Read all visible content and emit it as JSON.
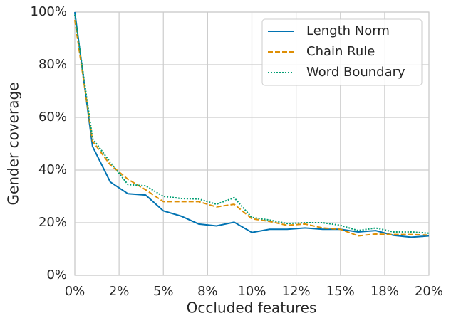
{
  "chart_data": {
    "type": "line",
    "xlabel": "Occluded features",
    "ylabel": "Gender coverage",
    "x": [
      0,
      1,
      2,
      3,
      4,
      5,
      6,
      7,
      8,
      9,
      10,
      11,
      12,
      13,
      14,
      15,
      16,
      17,
      18,
      19,
      20
    ],
    "series": [
      {
        "name": "Length Norm",
        "color": "#0173b2",
        "linestyle": "solid",
        "values": [
          100,
          49,
          35.5,
          31,
          30.5,
          24.5,
          22.5,
          19.5,
          18.8,
          20.2,
          16.3,
          17.5,
          17.5,
          18,
          17.5,
          17.5,
          16.5,
          17,
          15.2,
          14.5,
          15
        ]
      },
      {
        "name": "Chain Rule",
        "color": "#de8f05",
        "linestyle": "dashed",
        "values": [
          97,
          51,
          42,
          36.5,
          32.5,
          28,
          28,
          28,
          26,
          27,
          21.5,
          20.5,
          19,
          19.5,
          18,
          17.5,
          15,
          15.7,
          15.5,
          15.5,
          15.3
        ]
      },
      {
        "name": "Word Boundary",
        "color": "#029e73",
        "linestyle": "dotted",
        "values": [
          99,
          52,
          43,
          34.5,
          34,
          30,
          29.2,
          29,
          27,
          29.5,
          22,
          21,
          19.7,
          20,
          20,
          19,
          17,
          18,
          16.5,
          16.5,
          16
        ]
      }
    ],
    "xlim": [
      0,
      20
    ],
    "xticks": [
      {
        "value": 0,
        "label": "0%"
      },
      {
        "value": 2.5,
        "label": "2%"
      },
      {
        "value": 5,
        "label": "5%"
      },
      {
        "value": 7.5,
        "label": "8%"
      },
      {
        "value": 10,
        "label": "10%"
      },
      {
        "value": 12.5,
        "label": "12%"
      },
      {
        "value": 15,
        "label": "15%"
      },
      {
        "value": 17.5,
        "label": "18%"
      },
      {
        "value": 20,
        "label": "20%"
      }
    ],
    "ylim": [
      0,
      100
    ],
    "yticks": [
      {
        "value": 0,
        "label": "0%"
      },
      {
        "value": 20,
        "label": "20%"
      },
      {
        "value": 40,
        "label": "40%"
      },
      {
        "value": 60,
        "label": "60%"
      },
      {
        "value": 80,
        "label": "80%"
      },
      {
        "value": 100,
        "label": "100%"
      }
    ],
    "grid": true,
    "legend": "upper right"
  }
}
